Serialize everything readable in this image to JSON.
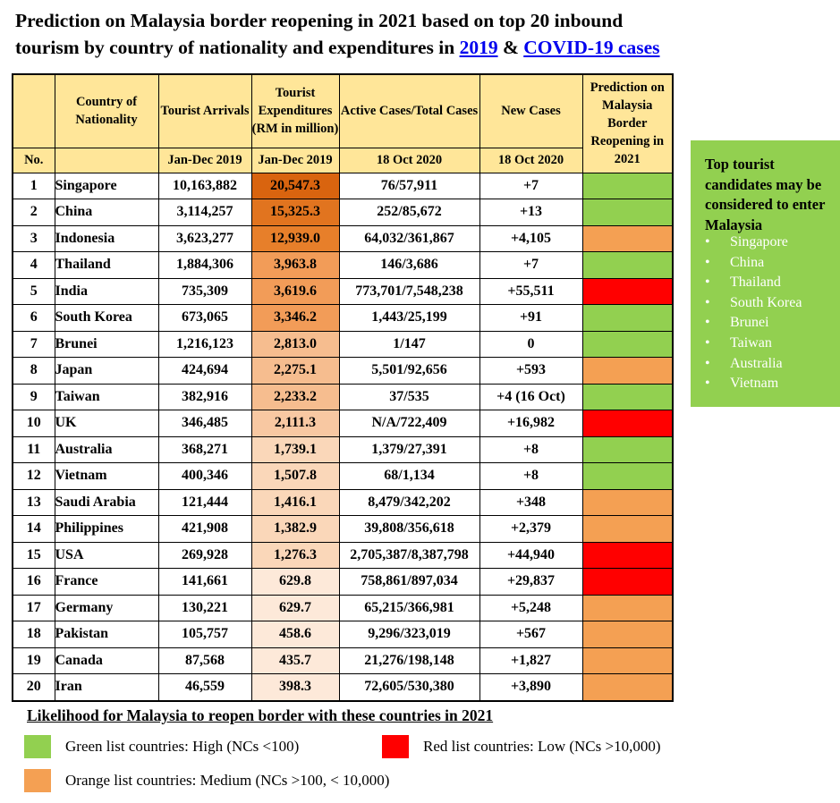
{
  "title": {
    "line1": "Prediction on Malaysia border reopening in 2021 based on top 20 inbound",
    "line2_prefix": "tourism by country of nationality and expenditures in ",
    "link_2019": "2019",
    "amp": " & ",
    "link_covid": "COVID-19 cases"
  },
  "colors": {
    "header_bg": "#ffe699",
    "green": "#92d050",
    "orange": "#f4a053",
    "red": "#ff0000"
  },
  "table": {
    "headers": {
      "no": "No.",
      "country": "Country of Nationality",
      "arrivals": "Tourist Arrivals",
      "expenditures": "Tourist Expenditures (RM in million)",
      "active_total": "Active Cases/Total Cases",
      "new_cases": "New Cases",
      "prediction": "Prediction on Malaysia Border Reopening in 2021"
    },
    "subheaders": {
      "arrivals": "Jan-Dec 2019",
      "expenditures": "Jan-Dec 2019",
      "active_total": "18 Oct 2020",
      "new_cases": "18 Oct 2020"
    },
    "rows": [
      {
        "no": "1",
        "country": "Singapore",
        "arrivals": "10,163,882",
        "exp": "20,547.3",
        "cases": "76/57,911",
        "new": "+7",
        "pred": "green",
        "exp_color": "#d9640f"
      },
      {
        "no": "2",
        "country": "China",
        "arrivals": "3,114,257",
        "exp": "15,325.3",
        "cases": "252/85,672",
        "new": "+13",
        "pred": "green",
        "exp_color": "#e1741f"
      },
      {
        "no": "3",
        "country": "Indonesia",
        "arrivals": "3,623,277",
        "exp": "12,939.0",
        "cases": "64,032/361,867",
        "new": "+4,105",
        "pred": "orange",
        "exp_color": "#e77f2a"
      },
      {
        "no": "4",
        "country": "Thailand",
        "arrivals": "1,884,306",
        "exp": "3,963.8",
        "cases": "146/3,686",
        "new": "+7",
        "pred": "green",
        "exp_color": "#f29c58"
      },
      {
        "no": "5",
        "country": "India",
        "arrivals": "735,309",
        "exp": "3,619.6",
        "cases": "773,701/7,548,238",
        "new": "+55,511",
        "pred": "red",
        "exp_color": "#f29c58"
      },
      {
        "no": "6",
        "country": "South Korea",
        "arrivals": "673,065",
        "exp": "3,346.2",
        "cases": "1,443/25,199",
        "new": "+91",
        "pred": "green",
        "exp_color": "#f29c58"
      },
      {
        "no": "7",
        "country": "Brunei",
        "arrivals": "1,216,123",
        "exp": "2,813.0",
        "cases": "1/147",
        "new": "0",
        "pred": "green",
        "exp_color": "#f6bd8f"
      },
      {
        "no": "8",
        "country": "Japan",
        "arrivals": "424,694",
        "exp": "2,275.1",
        "cases": "5,501/92,656",
        "new": "+593",
        "pred": "orange",
        "exp_color": "#f6bd8f"
      },
      {
        "no": "9",
        "country": "Taiwan",
        "arrivals": "382,916",
        "exp": "2,233.2",
        "cases": "37/535",
        "new": "+4 (16 Oct)",
        "pred": "green",
        "exp_color": "#f6bd8f"
      },
      {
        "no": "10",
        "country": "UK",
        "arrivals": "346,485",
        "exp": "2,111.3",
        "cases": "N/A/722,409",
        "new": "+16,982",
        "pred": "red",
        "exp_color": "#f8c8a2"
      },
      {
        "no": "11",
        "country": "Australia",
        "arrivals": "368,271",
        "exp": "1,739.1",
        "cases": "1,379/27,391",
        "new": "+8",
        "pred": "green",
        "exp_color": "#fad7b9"
      },
      {
        "no": "12",
        "country": "Vietnam",
        "arrivals": "400,346",
        "exp": "1,507.8",
        "cases": "68/1,134",
        "new": "+8",
        "pred": "green",
        "exp_color": "#fad7b9"
      },
      {
        "no": "13",
        "country": "Saudi Arabia",
        "arrivals": "121,444",
        "exp": "1,416.1",
        "cases": "8,479/342,202",
        "new": "+348",
        "pred": "orange",
        "exp_color": "#fad7b9"
      },
      {
        "no": "14",
        "country": "Philippines",
        "arrivals": "421,908",
        "exp": "1,382.9",
        "cases": "39,808/356,618",
        "new": "+2,379",
        "pred": "orange",
        "exp_color": "#fad7b9"
      },
      {
        "no": "15",
        "country": "USA",
        "arrivals": "269,928",
        "exp": "1,276.3",
        "cases": "2,705,387/8,387,798",
        "new": "+44,940",
        "pred": "red",
        "exp_color": "#fad7b9"
      },
      {
        "no": "16",
        "country": "France",
        "arrivals": "141,661",
        "exp": "629.8",
        "cases": "758,861/897,034",
        "new": "+29,837",
        "pred": "red",
        "exp_color": "#fde9d9"
      },
      {
        "no": "17",
        "country": "Germany",
        "arrivals": "130,221",
        "exp": "629.7",
        "cases": "65,215/366,981",
        "new": "+5,248",
        "pred": "orange",
        "exp_color": "#fde9d9"
      },
      {
        "no": "18",
        "country": "Pakistan",
        "arrivals": "105,757",
        "exp": "458.6",
        "cases": "9,296/323,019",
        "new": "+567",
        "pred": "orange",
        "exp_color": "#fde9d9"
      },
      {
        "no": "19",
        "country": "Canada",
        "arrivals": "87,568",
        "exp": "435.7",
        "cases": "21,276/198,148",
        "new": "+1,827",
        "pred": "orange",
        "exp_color": "#fde9d9"
      },
      {
        "no": "20",
        "country": "Iran",
        "arrivals": "46,559",
        "exp": "398.3",
        "cases": "72,605/530,380",
        "new": "+3,890",
        "pred": "orange",
        "exp_color": "#fde9d9"
      }
    ]
  },
  "sidebox": {
    "heading": "Top tourist candidates may be considered to enter Malaysia",
    "bullet": "•",
    "items": [
      "Singapore",
      "China",
      "Thailand",
      "South Korea",
      "Brunei",
      "Taiwan",
      "Australia",
      "Vietnam"
    ]
  },
  "legend": {
    "title": "Likelihood for Malaysia to reopen border with these countries in 2021",
    "green": "Green list countries: High (NCs <100)",
    "red": "Red list countries: Low (NCs >10,000)",
    "orange": "Orange list countries: Medium (NCs >100, < 10,000)"
  }
}
